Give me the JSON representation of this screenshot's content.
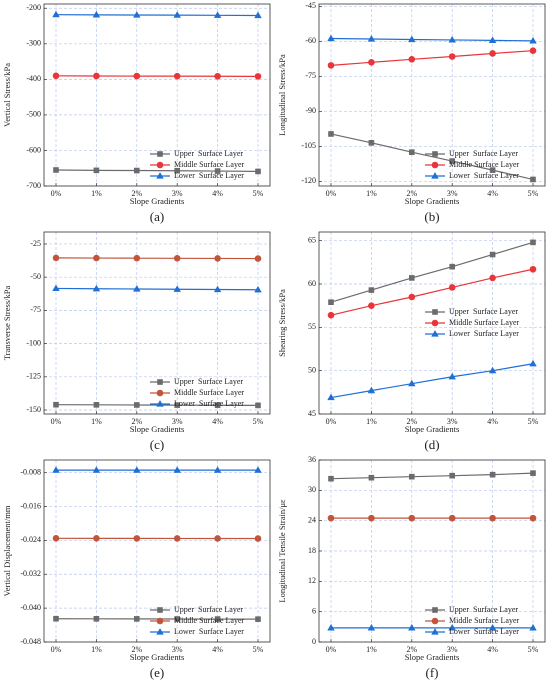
{
  "chart_data": [
    {
      "type": "line",
      "caption": "(a)",
      "y_label": "Vertical Stress/kPa",
      "x_label": "Slope Gradients",
      "categories": [
        "0%",
        "1%",
        "2%",
        "3%",
        "4%",
        "5%"
      ],
      "ylim": [
        -700,
        -188
      ],
      "yticks": [
        -200,
        -300,
        -400,
        -500,
        -600,
        -700
      ],
      "grid": true,
      "legend": "lower right",
      "series": [
        {
          "name": "Upper  Surface Layer",
          "color": "#6b6b6b",
          "marker": "square",
          "values": [
            -655,
            -656,
            -656.5,
            -657,
            -658,
            -659
          ]
        },
        {
          "name": "Middle Surface Layer",
          "color": "#e8353a",
          "marker": "circle",
          "values": [
            -390,
            -390.5,
            -390.8,
            -391,
            -391.3,
            -391.6
          ]
        },
        {
          "name": "Lower  Surface Layer",
          "color": "#1f6fd6",
          "marker": "triangle",
          "values": [
            -218,
            -218.5,
            -219,
            -219.3,
            -219.8,
            -220.3
          ]
        }
      ]
    },
    {
      "type": "line",
      "caption": "(b)",
      "y_label": "Longitudinal Stress/kPa",
      "x_label": "Slope Gradients",
      "categories": [
        "0%",
        "1%",
        "2%",
        "3%",
        "4%",
        "5%"
      ],
      "ylim": [
        -122,
        -44
      ],
      "yticks": [
        -45,
        -60,
        -75,
        -90,
        -105,
        -120
      ],
      "grid": true,
      "legend": "lower right",
      "series": [
        {
          "name": "Upper  Surface Layer",
          "color": "#6b6b6b",
          "marker": "square",
          "values": [
            -99.7,
            -103.5,
            -107.5,
            -111.3,
            -115.2,
            -119.2
          ]
        },
        {
          "name": "Middle Surface Layer",
          "color": "#e8353a",
          "marker": "circle",
          "values": [
            -70.3,
            -69,
            -67.7,
            -66.5,
            -65.2,
            -64
          ]
        },
        {
          "name": "Lower  Surface Layer",
          "color": "#1f6fd6",
          "marker": "triangle",
          "values": [
            -58.8,
            -59,
            -59.2,
            -59.4,
            -59.6,
            -59.8
          ]
        }
      ]
    },
    {
      "type": "line",
      "caption": "(c)",
      "y_label": "Transverse Stress/kPa",
      "x_label": "Slope Gradients",
      "categories": [
        "0%",
        "1%",
        "2%",
        "3%",
        "4%",
        "5%"
      ],
      "ylim": [
        -153,
        -16
      ],
      "yticks": [
        -25,
        -50,
        -75,
        -100,
        -125,
        -150
      ],
      "grid": true,
      "legend": "lower right",
      "series": [
        {
          "name": "Upper  Surface Layer",
          "color": "#6b6b6b",
          "marker": "square",
          "values": [
            -146,
            -146.1,
            -146.2,
            -146.3,
            -146.4,
            -146.5
          ]
        },
        {
          "name": "Middle Surface Layer",
          "color": "#c1553b",
          "marker": "circle",
          "values": [
            -35.5,
            -35.6,
            -35.7,
            -35.8,
            -35.9,
            -36
          ]
        },
        {
          "name": "Lower  Surface Layer",
          "color": "#1f6fd6",
          "marker": "triangle",
          "values": [
            -58.5,
            -58.7,
            -58.9,
            -59.1,
            -59.3,
            -59.5
          ]
        }
      ]
    },
    {
      "type": "line",
      "caption": "(d)",
      "y_label": "Shearing Stress/kPa",
      "x_label": "Slope Gradients",
      "categories": [
        "0%",
        "1%",
        "2%",
        "3%",
        "4%",
        "5%"
      ],
      "ylim": [
        45,
        66
      ],
      "yticks": [
        45,
        50,
        55,
        60,
        65
      ],
      "grid": true,
      "legend": "center right",
      "series": [
        {
          "name": "Upper  Surface Layer",
          "color": "#6b6b6b",
          "marker": "square",
          "values": [
            57.9,
            59.3,
            60.7,
            62.0,
            63.4,
            64.8
          ]
        },
        {
          "name": "Middle Surface Layer",
          "color": "#e8353a",
          "marker": "circle",
          "values": [
            56.4,
            57.5,
            58.5,
            59.6,
            60.7,
            61.7
          ]
        },
        {
          "name": "Lower  Surface Layer",
          "color": "#1f6fd6",
          "marker": "triangle",
          "values": [
            46.9,
            47.7,
            48.5,
            49.3,
            50.0,
            50.8
          ]
        }
      ]
    },
    {
      "type": "line",
      "caption": "(e)",
      "y_label": "Vertical Displacement/mm",
      "x_label": "Slope Gradients",
      "categories": [
        "0%",
        "1%",
        "2%",
        "3%",
        "4%",
        "5%"
      ],
      "ylim": [
        -0.048,
        -0.005
      ],
      "yticks": [
        -0.008,
        -0.016,
        -0.024,
        -0.032,
        {
          "value": -0.04,
          "label": "-0.040"
        },
        -0.048
      ],
      "grid": true,
      "legend": "lower right",
      "series": [
        {
          "name": "Upper  Surface Layer",
          "color": "#6b6b6b",
          "marker": "square",
          "values": [
            -0.0425,
            -0.04252,
            -0.04254,
            -0.04256,
            -0.04258,
            -0.0426
          ]
        },
        {
          "name": "Middle Surface Layer",
          "color": "#c1553b",
          "marker": "circle",
          "values": [
            -0.0235,
            -0.02351,
            -0.02352,
            -0.02353,
            -0.02354,
            -0.02355
          ]
        },
        {
          "name": "Lower  Surface Layer",
          "color": "#1f6fd6",
          "marker": "triangle",
          "values": [
            -0.0074,
            -0.0074,
            -0.0074,
            -0.0074,
            -0.0074,
            -0.0074
          ]
        }
      ]
    },
    {
      "type": "line",
      "caption": "(f)",
      "y_label": "Longitudinal Tensile Strain/με",
      "x_label": "Slope Gradients",
      "categories": [
        "0%",
        "1%",
        "2%",
        "3%",
        "4%",
        "5%"
      ],
      "ylim": [
        0,
        36
      ],
      "yticks": [
        0,
        6,
        12,
        18,
        24,
        30,
        36
      ],
      "grid": true,
      "legend": "lower right",
      "series": [
        {
          "name": "Upper  Surface Layer",
          "color": "#6b6b6b",
          "marker": "square",
          "values": [
            32.3,
            32.5,
            32.7,
            32.9,
            33.1,
            33.4
          ]
        },
        {
          "name": "Middle Surface Layer",
          "color": "#c1553b",
          "marker": "circle",
          "values": [
            24.5,
            24.5,
            24.5,
            24.5,
            24.5,
            24.5
          ]
        },
        {
          "name": "Lower  Surface Layer",
          "color": "#1f6fd6",
          "marker": "triangle",
          "values": [
            2.8,
            2.8,
            2.8,
            2.8,
            2.8,
            2.8
          ]
        }
      ]
    }
  ]
}
